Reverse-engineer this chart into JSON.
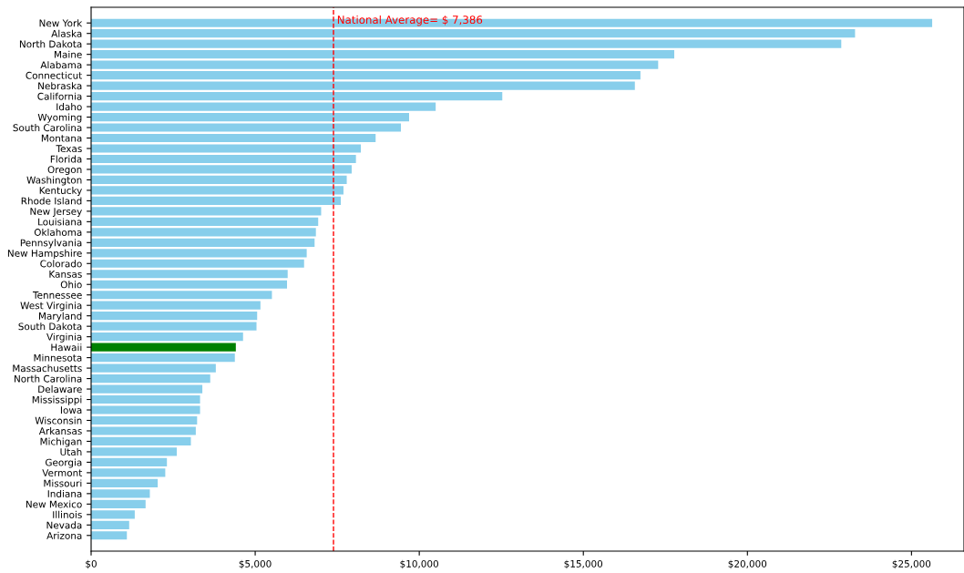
{
  "chart_data": {
    "type": "bar",
    "orientation": "horizontal",
    "categories": [
      "New York",
      "Alaska",
      "North Dakota",
      "Maine",
      "Alabama",
      "Connecticut",
      "Nebraska",
      "California",
      "Idaho",
      "Wyoming",
      "South Carolina",
      "Montana",
      "Texas",
      "Florida",
      "Oregon",
      "Washington",
      "Kentucky",
      "Rhode Island",
      "New Jersey",
      "Louisiana",
      "Oklahoma",
      "Pennsylvania",
      "New Hampshire",
      "Colorado",
      "Kansas",
      "Ohio",
      "Tennessee",
      "West Virginia",
      "Maryland",
      "South Dakota",
      "Virginia",
      "Hawaii",
      "Minnesota",
      "Massachusetts",
      "North Carolina",
      "Delaware",
      "Mississippi",
      "Iowa",
      "Wisconsin",
      "Arkansas",
      "Michigan",
      "Utah",
      "Georgia",
      "Vermont",
      "Missouri",
      "Indiana",
      "New Mexico",
      "Illinois",
      "Nevada",
      "Arizona"
    ],
    "values": [
      25630,
      23280,
      22860,
      17770,
      17280,
      16740,
      16570,
      12530,
      10500,
      9690,
      9440,
      8670,
      8220,
      8070,
      7940,
      7790,
      7690,
      7610,
      7010,
      6920,
      6850,
      6810,
      6570,
      6490,
      5990,
      5970,
      5510,
      5160,
      5060,
      5040,
      4630,
      4410,
      4380,
      3800,
      3630,
      3390,
      3320,
      3320,
      3230,
      3190,
      3040,
      2610,
      2310,
      2260,
      2030,
      1790,
      1660,
      1330,
      1160,
      1090
    ],
    "colors": [
      "#87ceeb",
      "#87ceeb",
      "#87ceeb",
      "#87ceeb",
      "#87ceeb",
      "#87ceeb",
      "#87ceeb",
      "#87ceeb",
      "#87ceeb",
      "#87ceeb",
      "#87ceeb",
      "#87ceeb",
      "#87ceeb",
      "#87ceeb",
      "#87ceeb",
      "#87ceeb",
      "#87ceeb",
      "#87ceeb",
      "#87ceeb",
      "#87ceeb",
      "#87ceeb",
      "#87ceeb",
      "#87ceeb",
      "#87ceeb",
      "#87ceeb",
      "#87ceeb",
      "#87ceeb",
      "#87ceeb",
      "#87ceeb",
      "#87ceeb",
      "#87ceeb",
      "#008000",
      "#87ceeb",
      "#87ceeb",
      "#87ceeb",
      "#87ceeb",
      "#87ceeb",
      "#87ceeb",
      "#87ceeb",
      "#87ceeb",
      "#87ceeb",
      "#87ceeb",
      "#87ceeb",
      "#87ceeb",
      "#87ceeb",
      "#87ceeb",
      "#87ceeb",
      "#87ceeb",
      "#87ceeb",
      "#87ceeb"
    ],
    "xlim": [
      0,
      26600
    ],
    "xticks": [
      {
        "value": 0,
        "label": "$0"
      },
      {
        "value": 5000,
        "label": "$5,000"
      },
      {
        "value": 10000,
        "label": "$10,000"
      },
      {
        "value": 15000,
        "label": "$15,000"
      },
      {
        "value": 20000,
        "label": "$20,000"
      },
      {
        "value": 25000,
        "label": "$25,000"
      }
    ],
    "ref_lines": [
      {
        "axis": "x",
        "value": 7386,
        "label": "National Average= $ 7,386",
        "color": "#ff0000",
        "line_style": "dashed"
      }
    ],
    "grid": false,
    "legend": false
  }
}
